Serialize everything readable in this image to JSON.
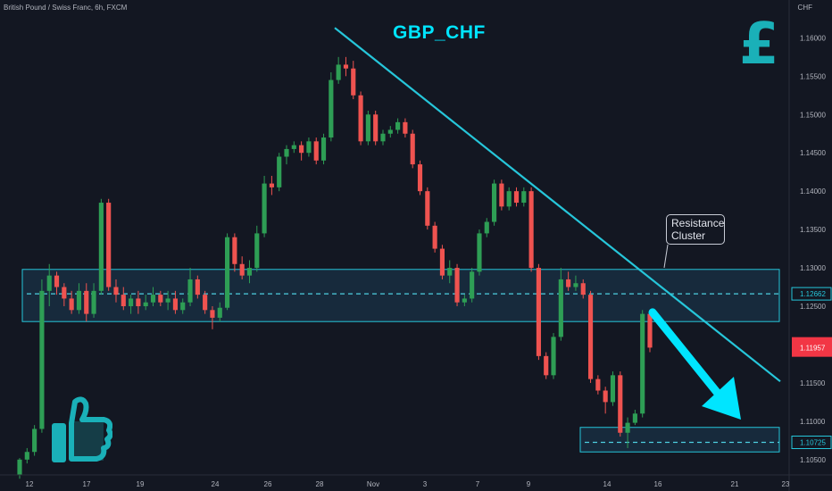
{
  "header": {
    "symbol_info": "British Pound / Swiss Franc, 6h, FXCM",
    "currency": "CHF"
  },
  "title": "GBP_CHF",
  "annotations": {
    "resistance_label_line1": "Resistance",
    "resistance_label_line2": "Cluster"
  },
  "icons": {
    "currency_icon": "pound-sign",
    "thumb_icon": "thumbs-up"
  },
  "colors": {
    "up": "#26a69a",
    "up_fill": "#2e9e55",
    "down": "#ef5350",
    "accent": "#00e5ff",
    "zone_fill": "#1c3a52",
    "background": "#131722",
    "price_tag_current": "#f23645"
  },
  "chart_data": {
    "type": "candlestick",
    "y_axis": {
      "min": 1.103,
      "max": 1.164,
      "ticks": [
        "1.16000",
        "1.15500",
        "1.15000",
        "1.14500",
        "1.14000",
        "1.13500",
        "1.13000",
        "1.12500",
        "1.11500",
        "1.11000",
        "1.10500"
      ]
    },
    "x_axis": {
      "ticks": [
        "12",
        "17",
        "19",
        "24",
        "26",
        "28",
        "Nov",
        "3",
        "7",
        "9",
        "14",
        "16",
        "21",
        "23"
      ]
    },
    "price_tags": [
      {
        "value": 1.12662,
        "label": "1.12662",
        "style": "outline"
      },
      {
        "value": 1.11957,
        "label": "1.11957",
        "style": "current"
      },
      {
        "value": 1.10725,
        "label": "1.10725",
        "style": "outline"
      }
    ],
    "resistance_zone": {
      "from": 1.123,
      "to": 1.1298,
      "level": 1.12662
    },
    "support_zone": {
      "from": 1.106,
      "to": 1.1092,
      "level": 1.10725
    },
    "trendline": {
      "from": {
        "x": 0,
        "y": 1.1613
      },
      "to": {
        "x": 1,
        "y": 1.1152
      }
    },
    "forecast_arrow": {
      "from": 1.1242,
      "to": 1.1094
    },
    "candles": [
      [
        1.103,
        1.105,
        1.1025,
        1.1052
      ],
      [
        1.105,
        1.106,
        1.1045,
        1.1065
      ],
      [
        1.106,
        1.109,
        1.1055,
        1.1095
      ],
      [
        1.109,
        1.127,
        1.1085,
        1.1285
      ],
      [
        1.127,
        1.129,
        1.125,
        1.1305
      ],
      [
        1.129,
        1.1275,
        1.1265,
        1.1295
      ],
      [
        1.1275,
        1.126,
        1.125,
        1.128
      ],
      [
        1.126,
        1.1245,
        1.124,
        1.127
      ],
      [
        1.1245,
        1.127,
        1.124,
        1.128
      ],
      [
        1.127,
        1.124,
        1.123,
        1.128
      ],
      [
        1.124,
        1.127,
        1.1235,
        1.128
      ],
      [
        1.127,
        1.1385,
        1.1265,
        1.139
      ],
      [
        1.1385,
        1.1275,
        1.127,
        1.139
      ],
      [
        1.1275,
        1.1265,
        1.1255,
        1.1285
      ],
      [
        1.1265,
        1.125,
        1.1245,
        1.1275
      ],
      [
        1.125,
        1.126,
        1.124,
        1.1265
      ],
      [
        1.126,
        1.125,
        1.124,
        1.127
      ],
      [
        1.125,
        1.1255,
        1.1245,
        1.1265
      ],
      [
        1.1255,
        1.1265,
        1.125,
        1.1275
      ],
      [
        1.1265,
        1.1255,
        1.125,
        1.127
      ],
      [
        1.1255,
        1.126,
        1.1245,
        1.127
      ],
      [
        1.126,
        1.1245,
        1.124,
        1.127
      ],
      [
        1.1245,
        1.1255,
        1.124,
        1.126
      ],
      [
        1.1255,
        1.1285,
        1.125,
        1.13
      ],
      [
        1.1285,
        1.1265,
        1.126,
        1.129
      ],
      [
        1.1265,
        1.1245,
        1.124,
        1.127
      ],
      [
        1.1245,
        1.1235,
        1.122,
        1.125
      ],
      [
        1.1235,
        1.1248,
        1.123,
        1.1255
      ],
      [
        1.1248,
        1.134,
        1.1245,
        1.1345
      ],
      [
        1.134,
        1.1305,
        1.1295,
        1.1345
      ],
      [
        1.1305,
        1.129,
        1.1285,
        1.1315
      ],
      [
        1.129,
        1.13,
        1.128,
        1.131
      ],
      [
        1.13,
        1.1345,
        1.1295,
        1.1355
      ],
      [
        1.1345,
        1.141,
        1.134,
        1.142
      ],
      [
        1.141,
        1.1405,
        1.1395,
        1.142
      ],
      [
        1.1405,
        1.1445,
        1.14,
        1.145
      ],
      [
        1.1445,
        1.1455,
        1.1435,
        1.146
      ],
      [
        1.1455,
        1.146,
        1.145,
        1.1465
      ],
      [
        1.146,
        1.145,
        1.144,
        1.1465
      ],
      [
        1.145,
        1.1465,
        1.1445,
        1.147
      ],
      [
        1.1465,
        1.144,
        1.1435,
        1.147
      ],
      [
        1.144,
        1.147,
        1.1435,
        1.1475
      ],
      [
        1.147,
        1.1545,
        1.1465,
        1.1555
      ],
      [
        1.1545,
        1.1565,
        1.154,
        1.1575
      ],
      [
        1.1565,
        1.156,
        1.155,
        1.1575
      ],
      [
        1.156,
        1.1525,
        1.152,
        1.157
      ],
      [
        1.1525,
        1.1465,
        1.146,
        1.153
      ],
      [
        1.1465,
        1.15,
        1.146,
        1.1505
      ],
      [
        1.15,
        1.1465,
        1.146,
        1.1505
      ],
      [
        1.1465,
        1.1475,
        1.146,
        1.148
      ],
      [
        1.1475,
        1.148,
        1.147,
        1.1485
      ],
      [
        1.148,
        1.149,
        1.1475,
        1.1495
      ],
      [
        1.149,
        1.1475,
        1.147,
        1.1495
      ],
      [
        1.1475,
        1.1435,
        1.143,
        1.148
      ],
      [
        1.1435,
        1.14,
        1.1395,
        1.144
      ],
      [
        1.14,
        1.1355,
        1.135,
        1.1405
      ],
      [
        1.1355,
        1.1325,
        1.132,
        1.136
      ],
      [
        1.1325,
        1.129,
        1.1285,
        1.133
      ],
      [
        1.129,
        1.13,
        1.128,
        1.131
      ],
      [
        1.13,
        1.1255,
        1.125,
        1.1305
      ],
      [
        1.1255,
        1.126,
        1.125,
        1.1265
      ],
      [
        1.126,
        1.1295,
        1.1255,
        1.13
      ],
      [
        1.1295,
        1.1345,
        1.129,
        1.135
      ],
      [
        1.1345,
        1.136,
        1.134,
        1.1365
      ],
      [
        1.136,
        1.141,
        1.1355,
        1.1415
      ],
      [
        1.141,
        1.138,
        1.1375,
        1.1415
      ],
      [
        1.138,
        1.14,
        1.1375,
        1.1405
      ],
      [
        1.14,
        1.1385,
        1.138,
        1.1405
      ],
      [
        1.1385,
        1.14,
        1.138,
        1.1405
      ],
      [
        1.14,
        1.13,
        1.1295,
        1.1405
      ],
      [
        1.13,
        1.1185,
        1.118,
        1.1305
      ],
      [
        1.1185,
        1.116,
        1.1155,
        1.119
      ],
      [
        1.116,
        1.121,
        1.1155,
        1.1215
      ],
      [
        1.121,
        1.1285,
        1.1205,
        1.13
      ],
      [
        1.1285,
        1.1275,
        1.127,
        1.1295
      ],
      [
        1.1275,
        1.128,
        1.127,
        1.129
      ],
      [
        1.128,
        1.1265,
        1.126,
        1.1285
      ],
      [
        1.1265,
        1.1155,
        1.115,
        1.127
      ],
      [
        1.1155,
        1.114,
        1.1135,
        1.116
      ],
      [
        1.114,
        1.1125,
        1.111,
        1.1145
      ],
      [
        1.1125,
        1.116,
        1.112,
        1.1165
      ],
      [
        1.116,
        1.1085,
        1.108,
        1.1165
      ],
      [
        1.1085,
        1.1098,
        1.1065,
        1.1105
      ],
      [
        1.1098,
        1.111,
        1.1095,
        1.1115
      ],
      [
        1.111,
        1.124,
        1.1105,
        1.1245
      ],
      [
        1.124,
        1.1196,
        1.119,
        1.1245
      ]
    ]
  }
}
